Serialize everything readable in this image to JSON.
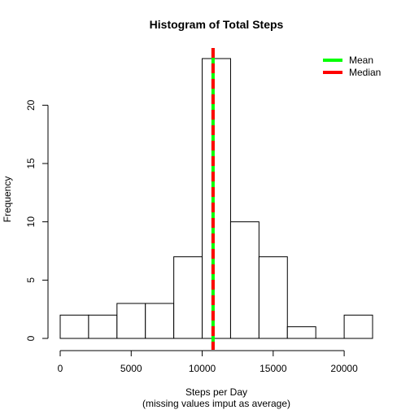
{
  "chart_data": {
    "type": "bar",
    "title": "Histogram of Total Steps",
    "xlabel": "Steps per Day",
    "xlabel_line2": "(missing values imput as average)",
    "ylabel": "Frequency",
    "bin_edges": [
      0,
      2000,
      4000,
      6000,
      8000,
      10000,
      12000,
      14000,
      16000,
      18000,
      20000,
      22000
    ],
    "values": [
      2,
      2,
      3,
      3,
      7,
      24,
      10,
      7,
      1,
      0,
      2
    ],
    "xlim": [
      0,
      22000
    ],
    "ylim": [
      0,
      24
    ],
    "xticks": [
      0,
      5000,
      10000,
      15000,
      20000
    ],
    "xtick_labels": [
      "0",
      "5000",
      "10000",
      "15000",
      "20000"
    ],
    "yticks": [
      0,
      5,
      10,
      15,
      20
    ],
    "ytick_labels": [
      "0",
      "5",
      "10",
      "15",
      "20"
    ],
    "grid": false,
    "bar_fill": "#ffffff",
    "bar_stroke": "#000000",
    "reference_lines": [
      {
        "name": "Mean",
        "value": 10766,
        "color": "#00ff00"
      },
      {
        "name": "Median",
        "value": 10766,
        "color": "#ff0000",
        "style": "dashed"
      }
    ],
    "legend": {
      "position": "top-right",
      "entries": [
        {
          "label": "Mean",
          "color": "#00ff00"
        },
        {
          "label": "Median",
          "color": "#ff0000"
        }
      ]
    }
  }
}
